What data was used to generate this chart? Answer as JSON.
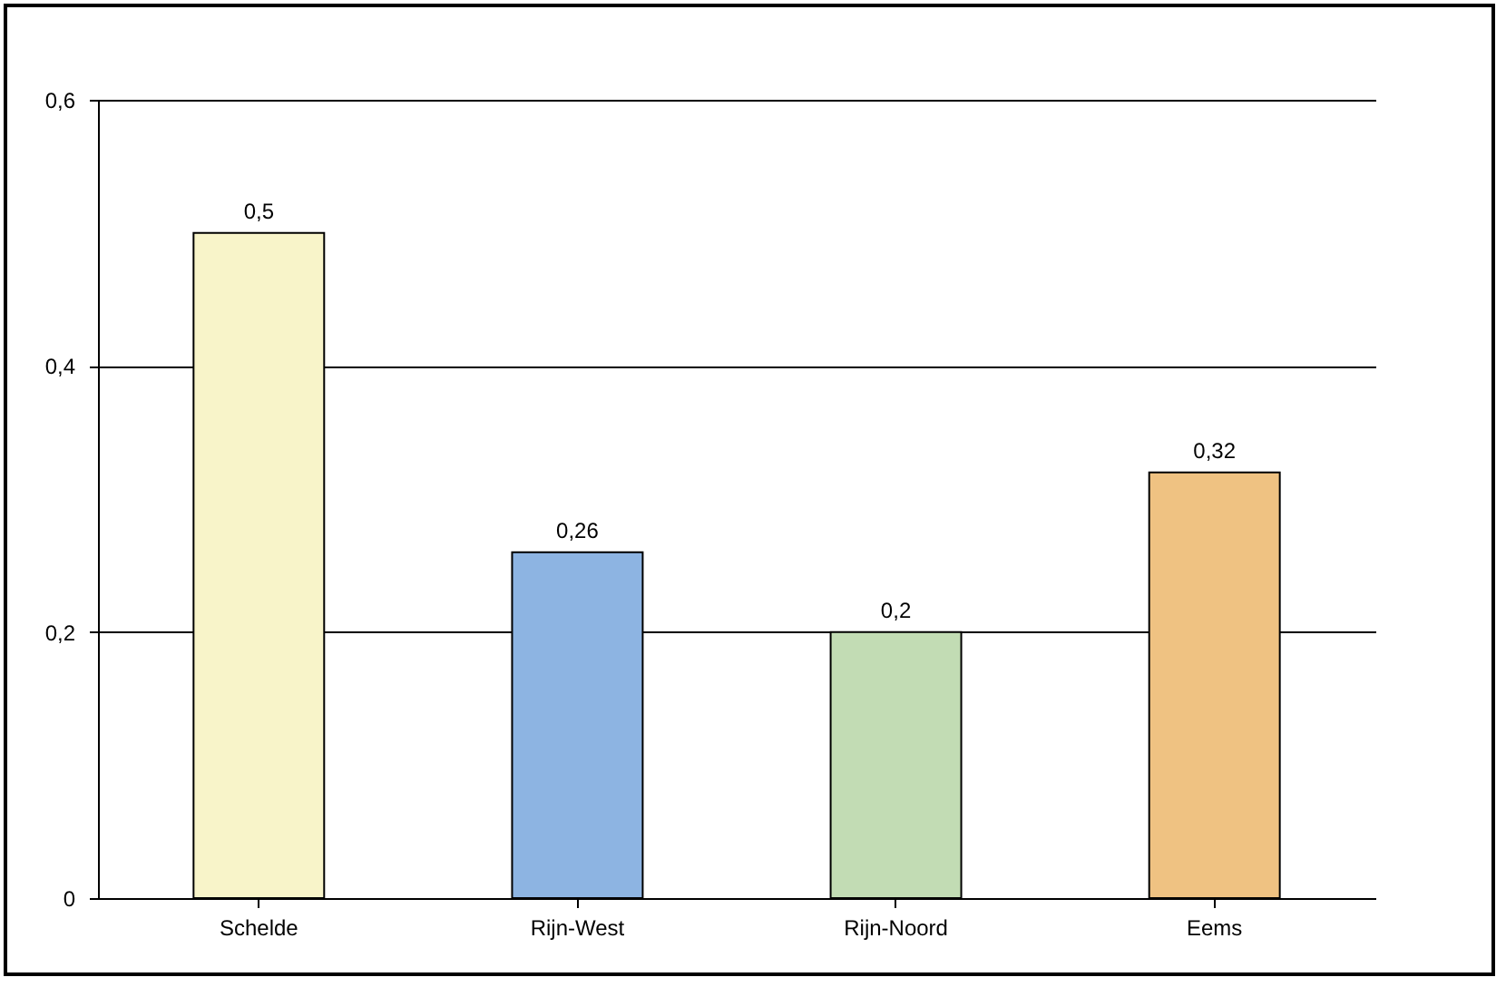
{
  "chart_data": {
    "type": "bar",
    "categories": [
      "Schelde",
      "Rijn-West",
      "Rijn-Noord",
      "Eems"
    ],
    "values": [
      0.5,
      0.26,
      0.2,
      0.32
    ],
    "colors": [
      "#f8f4c9",
      "#8db4e2",
      "#c2dcb4",
      "#efc282"
    ],
    "value_labels": [
      "0,5",
      "0,26",
      "0,2",
      "0,32"
    ],
    "ylim": [
      0,
      0.6
    ],
    "yticks": [
      {
        "value": 0,
        "label": "0"
      },
      {
        "value": 0.2,
        "label": "0,2"
      },
      {
        "value": 0.4,
        "label": "0,4"
      },
      {
        "value": 0.6,
        "label": "0,6"
      }
    ],
    "grid": "y",
    "legend": false
  }
}
